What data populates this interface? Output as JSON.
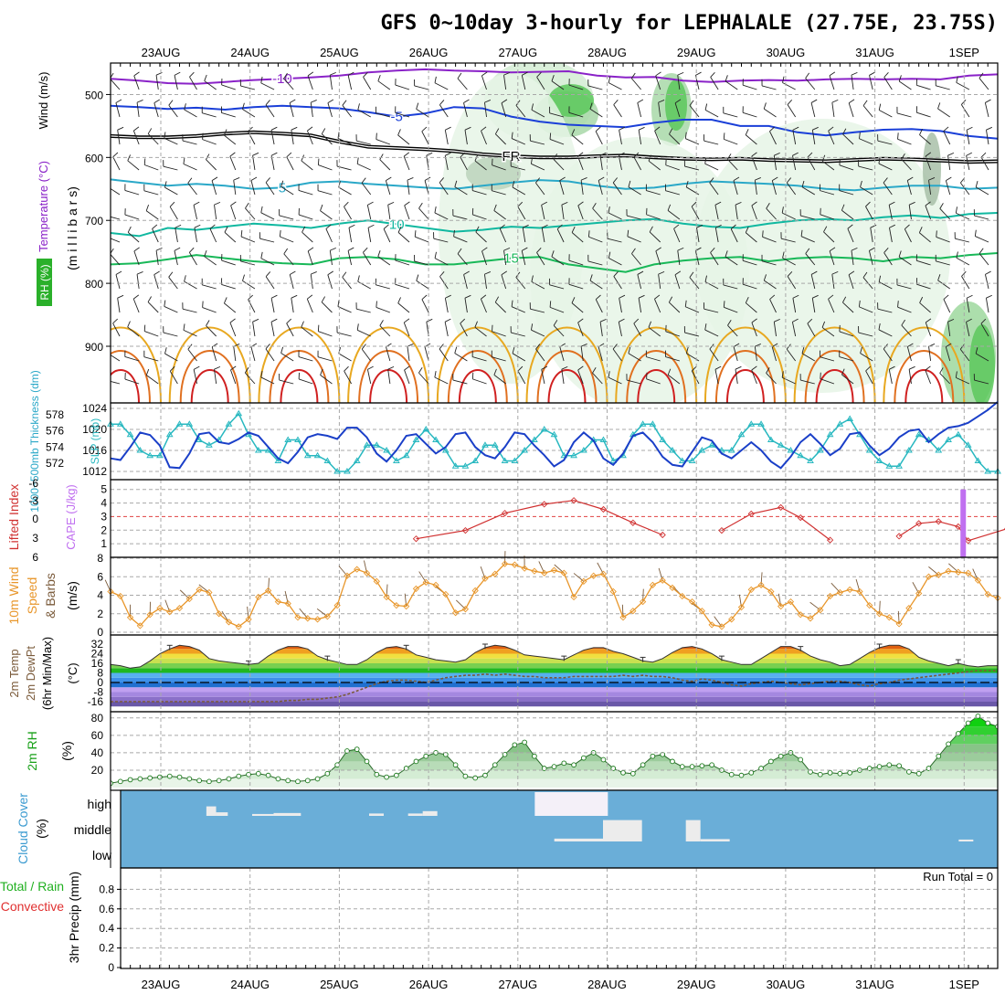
{
  "title": "GFS 0~10day 3-hourly for LEPHALALE (27.75E, 23.75S)",
  "dates": [
    "23AUG",
    "24AUG",
    "25AUG",
    "26AUG",
    "27AUG",
    "28AUG",
    "29AUG",
    "30AUG",
    "31AUG",
    "1SEP"
  ],
  "run_total": "Run Total = 0",
  "colors": {
    "purple": "#8a22c8",
    "blue": "#1a3fd8",
    "cyan": "#2aa8c8",
    "teal": "#10b8a0",
    "green": "#18b858",
    "orange": "#e8a020",
    "red": "#d02020",
    "slp": "#28b8c0",
    "thick": "#1a3fc8",
    "cape": "#c070f0",
    "li": "#d03030",
    "wind": "#e8962a",
    "cloud": "#6aaed8",
    "rh": "#18a018"
  },
  "chart_data": [
    {
      "type": "contour",
      "name": "upper",
      "ylabels": {
        "rh": "RH (%)",
        "temp": "Temperature (°C)",
        "wind": "Wind (m/s)",
        "mb": "(m i l l i b a r s)"
      },
      "ylim": [
        450,
        990
      ],
      "yticks": [
        500,
        600,
        700,
        800,
        900
      ],
      "isotherms": [
        {
          "label": "-10",
          "color": "purple",
          "p": [
            475,
            478,
            482,
            483,
            480,
            477,
            475,
            473,
            470,
            465,
            462,
            460,
            462,
            463,
            465,
            464,
            463,
            470,
            473,
            472,
            478,
            480,
            478,
            477,
            478,
            476,
            475,
            476,
            475,
            476,
            470,
            468
          ]
        },
        {
          "label": "-5",
          "color": "blue",
          "p": [
            518,
            520,
            523,
            521,
            524,
            520,
            518,
            520,
            522,
            528,
            535,
            530,
            520,
            522,
            535,
            543,
            548,
            550,
            552,
            545,
            540,
            540,
            550,
            550,
            560,
            565,
            560,
            556,
            555,
            558,
            566,
            570
          ]
        },
        {
          "label": "FR",
          "color": "black",
          "p": [
            566,
            568,
            568,
            566,
            562,
            560,
            562,
            565,
            575,
            583,
            585,
            587,
            590,
            595,
            598,
            600,
            600,
            598,
            597,
            600,
            602,
            603,
            602,
            604,
            605,
            606,
            604,
            602,
            603,
            605,
            607,
            606
          ]
        },
        {
          "label": "5",
          "color": "cyan",
          "p": [
            635,
            640,
            645,
            642,
            645,
            650,
            648,
            640,
            638,
            642,
            645,
            648,
            650,
            645,
            640,
            636,
            638,
            645,
            650,
            648,
            642,
            638,
            640,
            642,
            645,
            650,
            652,
            648,
            645,
            645,
            650,
            648
          ]
        },
        {
          "label": "10",
          "color": "teal",
          "p": [
            720,
            725,
            712,
            715,
            710,
            705,
            708,
            712,
            705,
            700,
            706,
            712,
            718,
            715,
            710,
            712,
            708,
            704,
            700,
            698,
            705,
            710,
            712,
            705,
            700,
            698,
            700,
            695,
            692,
            696,
            690,
            688
          ]
        },
        {
          "label": "15",
          "color": "green",
          "p": [
            770,
            768,
            762,
            755,
            760,
            765,
            768,
            770,
            760,
            758,
            762,
            770,
            770,
            765,
            760,
            758,
            770,
            776,
            782,
            770,
            764,
            760,
            758,
            765,
            760,
            758,
            760,
            765,
            758,
            760,
            755,
            752
          ]
        }
      ],
      "freezing_level_label": "FR",
      "temp_labels": [
        "-10",
        "-5",
        "FR",
        "5",
        "10",
        "15"
      ]
    },
    {
      "type": "line",
      "name": "thickness_slp",
      "ylabel_left": "1000~500mb Thickness (dm)",
      "ylabel_right": "SLP (mb)",
      "left_ticks": [
        572,
        574,
        576,
        578
      ],
      "right_ticks": [
        1012,
        1016,
        1020,
        1024
      ],
      "slp": [
        1021,
        1021,
        1019,
        1016,
        1015,
        1015,
        1019,
        1021,
        1021,
        1018,
        1017,
        1018,
        1021,
        1023,
        1019,
        1016,
        1016,
        1014,
        1018,
        1018,
        1015,
        1015,
        1014,
        1012,
        1012,
        1014,
        1017,
        1017,
        1016,
        1014,
        1015,
        1018,
        1020,
        1018,
        1016,
        1013,
        1013,
        1014,
        1017,
        1017,
        1014,
        1014,
        1016,
        1018,
        1020,
        1019,
        1015,
        1015,
        1016,
        1018,
        1018,
        1014,
        1015,
        1019,
        1021,
        1021,
        1018,
        1016,
        1014,
        1014,
        1016,
        1017,
        1016,
        1016,
        1019,
        1021,
        1021,
        1018,
        1017,
        1016,
        1015,
        1014,
        1016,
        1019,
        1021,
        1022,
        1019,
        1016,
        1014,
        1013,
        1013,
        1016,
        1019,
        1018,
        1016,
        1018,
        1019,
        1017,
        1014,
        1012,
        1012
      ],
      "thickness": [
        572.6,
        572.4,
        574.0,
        575.8,
        575.5,
        574.2,
        571.5,
        571.4,
        573.2,
        575.6,
        575.8,
        574.6,
        574.4,
        575.0,
        575.8,
        575.4,
        574.0,
        572.6,
        572.0,
        573.4,
        575.2,
        575.6,
        575.4,
        575.0,
        576.4,
        576.4,
        575.2,
        573.2,
        572.2,
        573.6,
        575.4,
        575.6,
        574.4,
        573.2,
        574.0,
        575.6,
        575.8,
        574.0,
        573.0,
        572.6,
        574.0,
        575.8,
        575.6,
        574.2,
        573.0,
        571.6,
        572.4,
        574.6,
        575.8,
        574.8,
        572.6,
        571.8,
        573.2,
        575.4,
        575.8,
        574.6,
        572.8,
        571.8,
        571.6,
        573.4,
        575.2,
        574.8,
        573.2,
        572.6,
        573.6,
        574.6,
        573.6,
        572.2,
        571.4,
        572.8,
        574.6,
        575.6,
        574.4,
        573.0,
        573.8,
        575.6,
        575.8,
        574.2,
        573.0,
        573.8,
        575.2,
        576.0,
        576.2,
        574.6,
        575.6,
        576.4,
        576.6,
        577.0,
        577.8,
        578.6,
        579.6
      ]
    },
    {
      "type": "line",
      "name": "cape_li",
      "ylabel_left": "Lifted Index",
      "ylabel_right": "CAPE (J/kg)",
      "left_ticks": [
        "-6",
        "-3",
        "0",
        "3",
        "6"
      ],
      "right_ticks": [
        1,
        2,
        3,
        4,
        5
      ],
      "lifted_index_pts": [
        [
          31,
          6.1
        ],
        [
          36,
          4.8
        ],
        [
          40,
          2.1
        ],
        [
          44,
          0.7
        ],
        [
          47,
          0.1
        ],
        [
          50,
          1.5
        ],
        [
          53,
          3.6
        ],
        [
          56,
          5.5
        ],
        [
          62,
          4.8
        ],
        [
          65,
          2.2
        ],
        [
          68,
          1.2
        ],
        [
          70,
          2.8
        ],
        [
          73,
          6.3
        ],
        [
          80,
          5.7
        ],
        [
          82,
          3.7
        ],
        [
          84,
          3.4
        ],
        [
          86,
          4.2
        ],
        [
          87,
          6.4
        ],
        [
          91,
          4.5
        ],
        [
          93,
          3.6
        ],
        [
          95,
          4.2
        ],
        [
          97,
          4.6
        ],
        [
          99,
          5.7
        ]
      ],
      "cape_bar": {
        "step": 86.5,
        "value": 5.0
      }
    },
    {
      "type": "line",
      "name": "wind10m",
      "ylabel": "10m Wind Speed & Barbs (m/s)",
      "yticks": [
        0,
        2,
        4,
        6,
        8
      ],
      "values": [
        4.4,
        3.9,
        1.6,
        0.7,
        1.9,
        2.6,
        2.2,
        2.6,
        3.6,
        4.6,
        4.3,
        2.0,
        1.1,
        0.6,
        1.4,
        3.8,
        4.5,
        3.3,
        3.1,
        1.6,
        1.5,
        1.4,
        1.7,
        2.9,
        6.1,
        6.8,
        6.4,
        5.5,
        3.8,
        2.9,
        2.8,
        4.7,
        5.4,
        5.1,
        4.1,
        2.1,
        2.5,
        4.5,
        5.8,
        6.3,
        7.4,
        7.3,
        6.9,
        6.6,
        6.4,
        6.7,
        6.4,
        3.8,
        5.5,
        6.1,
        6.3,
        4.4,
        1.6,
        2.3,
        3.3,
        5.1,
        5.6,
        4.8,
        3.9,
        3.3,
        2.3,
        0.8,
        0.6,
        1.4,
        2.7,
        4.6,
        5.1,
        4.4,
        2.8,
        3.3,
        1.9,
        1.5,
        2.4,
        3.9,
        4.3,
        4.6,
        4.4,
        2.9,
        2.0,
        1.6,
        0.9,
        2.6,
        4.2,
        6.0,
        6.2,
        6.6,
        6.5,
        6.4,
        5.6,
        4.1,
        3.7
      ]
    },
    {
      "type": "line",
      "name": "temp2m",
      "ylabel": "2m Temp 2m DewPt (6hr Min/Max) (°C)",
      "yticks": [
        -16,
        -8,
        0,
        8,
        16,
        24,
        32
      ],
      "temp": [
        15,
        14,
        12,
        13,
        18,
        24,
        28,
        31,
        30,
        27,
        20,
        18,
        17,
        16,
        15,
        16,
        22,
        27,
        30,
        30,
        28,
        22,
        19,
        17,
        15,
        15,
        19,
        25,
        29,
        30,
        28,
        23,
        21,
        19,
        18,
        17,
        19,
        25,
        29,
        31,
        30,
        27,
        23,
        22,
        21,
        20,
        19,
        23,
        27,
        29,
        29,
        26,
        24,
        21,
        18,
        17,
        20,
        25,
        29,
        30,
        28,
        24,
        19,
        17,
        15,
        15,
        20,
        25,
        30,
        30,
        27,
        22,
        19,
        17,
        14,
        15,
        20,
        25,
        29,
        31,
        31,
        28,
        21,
        18,
        16,
        14,
        16,
        14,
        13,
        14,
        14
      ],
      "dewpoint": [
        -16,
        -16,
        -16,
        -16,
        -16,
        -16,
        -16,
        -16,
        -16,
        -16,
        -16,
        -16,
        -16,
        -16,
        -16,
        -16,
        -16,
        -16,
        -15,
        -15,
        -14,
        -14,
        -13,
        -12,
        -10,
        -7,
        -4,
        -1,
        1,
        2,
        2,
        1,
        0,
        2,
        4,
        5,
        6,
        6,
        7,
        6,
        7,
        6,
        5,
        5,
        4,
        4,
        4,
        5,
        5,
        5,
        5,
        5,
        6,
        5,
        6,
        5,
        5,
        4,
        2,
        1,
        3,
        2,
        0,
        -2,
        -3,
        -1,
        0,
        1,
        0,
        -1,
        -2,
        -1,
        0,
        1,
        1,
        0,
        -2,
        -3,
        -1,
        0,
        2,
        3,
        4,
        5,
        6,
        7,
        8,
        9,
        10,
        10,
        10
      ]
    },
    {
      "type": "area",
      "name": "rh2m",
      "ylabel": "2m RH (%)",
      "yticks": [
        20,
        40,
        60,
        80
      ],
      "values": [
        5,
        7,
        9,
        10,
        11,
        12,
        13,
        12,
        10,
        8,
        7,
        8,
        10,
        13,
        15,
        16,
        14,
        10,
        8,
        7,
        8,
        10,
        16,
        26,
        42,
        44,
        30,
        15,
        12,
        14,
        22,
        30,
        36,
        40,
        38,
        26,
        13,
        11,
        14,
        26,
        38,
        49,
        52,
        36,
        22,
        24,
        28,
        26,
        34,
        40,
        32,
        22,
        17,
        16,
        26,
        36,
        38,
        30,
        24,
        24,
        25,
        26,
        20,
        15,
        14,
        17,
        22,
        30,
        36,
        40,
        32,
        18,
        15,
        17,
        16,
        17,
        20,
        22,
        24,
        26,
        25,
        18,
        16,
        22,
        36,
        50,
        62,
        74,
        82,
        74,
        70
      ]
    },
    {
      "type": "bar",
      "name": "cloud",
      "ylabel": "Cloud Cover (%)",
      "levels": [
        "high",
        "middle",
        "low"
      ],
      "blocks": [
        {
          "level": 0,
          "x0": 8.8,
          "x1": 9.8,
          "cov": 0.4
        },
        {
          "level": 0,
          "x0": 9.8,
          "x1": 11.0,
          "cov": 0.15
        },
        {
          "level": 0,
          "x0": 13.5,
          "x1": 15.7,
          "cov": 0.08
        },
        {
          "level": 0,
          "x0": 15.7,
          "x1": 18.5,
          "cov": 0.12
        },
        {
          "level": 0,
          "x0": 25.5,
          "x1": 27.0,
          "cov": 0.1
        },
        {
          "level": 0,
          "x0": 29.5,
          "x1": 31.0,
          "cov": 0.1
        },
        {
          "level": 0,
          "x0": 31.0,
          "x1": 32.5,
          "cov": 0.2
        },
        {
          "level": 0,
          "x0": 42.5,
          "x1": 50.0,
          "cov": 1.0
        },
        {
          "level": 1,
          "x0": 44.5,
          "x1": 49.5,
          "cov": 0.12
        },
        {
          "level": 1,
          "x0": 49.5,
          "x1": 53.5,
          "cov": 0.9
        },
        {
          "level": 1,
          "x0": 58.0,
          "x1": 59.5,
          "cov": 0.9
        },
        {
          "level": 1,
          "x0": 59.5,
          "x1": 62.5,
          "cov": 0.1
        },
        {
          "level": 1,
          "x0": 86.0,
          "x1": 87.5,
          "cov": 0.08
        }
      ]
    },
    {
      "type": "bar",
      "name": "precip",
      "ylabel": "3hr Precip (mm)",
      "legend": {
        "total": "Total / Rain",
        "convective": "Convective"
      },
      "ylim": [
        0,
        1
      ],
      "yticks": [
        "0",
        "0.2",
        "0.4",
        "0.6",
        "0.8"
      ],
      "values": []
    }
  ]
}
